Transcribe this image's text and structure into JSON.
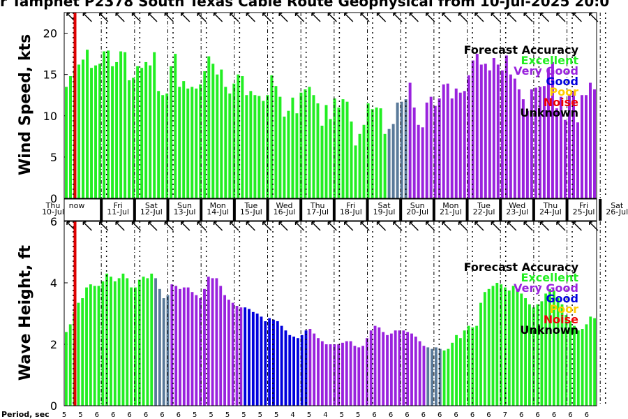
{
  "chart_data": {
    "type": "bar",
    "title": "r Tamphet P2378 South Texas Cable Route Geophysical from 10-Jul-2025 20:0",
    "days": [
      {
        "dow": "Thu",
        "date": "10-Jul"
      },
      {
        "dow": "Fri",
        "date": "11-Jul"
      },
      {
        "dow": "Sat",
        "date": "12-Jul"
      },
      {
        "dow": "Sun",
        "date": "13-Jul"
      },
      {
        "dow": "Mon",
        "date": "14-Jul"
      },
      {
        "dow": "Tue",
        "date": "15-Jul"
      },
      {
        "dow": "Wed",
        "date": "16-Jul"
      },
      {
        "dow": "Thu",
        "date": "17-Jul"
      },
      {
        "dow": "Fri",
        "date": "18-Jul"
      },
      {
        "dow": "Sat",
        "date": "19-Jul"
      },
      {
        "dow": "Sun",
        "date": "20-Jul"
      },
      {
        "dow": "Mon",
        "date": "21-Jul"
      },
      {
        "dow": "Tue",
        "date": "22-Jul"
      },
      {
        "dow": "Wed",
        "date": "23-Jul"
      },
      {
        "dow": "Thu",
        "date": "24-Jul"
      },
      {
        "dow": "Fri",
        "date": "25-Jul"
      },
      {
        "dow": "Sat",
        "date": "26-Jul"
      }
    ],
    "now_label": "now",
    "legend": {
      "title": "Forecast Accuracy",
      "entries": [
        {
          "label": "Excellent",
          "color": "#22ee22"
        },
        {
          "label": "Very Good",
          "color": "#9922dd"
        },
        {
          "label": "Good",
          "color": "#0000dd"
        },
        {
          "label": "Poor",
          "color": "#ffcc00"
        },
        {
          "label": "Noise",
          "color": "#ee0000"
        },
        {
          "label": "Unknown",
          "color": "#000000"
        }
      ]
    },
    "accuracy_colors": {
      "E": "#22ee22",
      "V": "#9922dd",
      "G": "#0000dd",
      "S": "#5a7a9a"
    },
    "wind": {
      "ylabel": "Wind Speed, kts",
      "ylim": [
        0,
        22.5
      ],
      "yticks": [
        "0",
        "5",
        "10",
        "15",
        "20"
      ],
      "values": [
        13.5,
        14.8,
        15.5,
        16.2,
        16.8,
        18.0,
        15.8,
        16.1,
        16.3,
        17.8,
        17.9,
        16.0,
        16.5,
        17.8,
        17.7,
        14.3,
        14.6,
        16.0,
        15.8,
        16.5,
        16.1,
        17.7,
        13.0,
        12.5,
        12.7,
        16.0,
        17.5,
        13.5,
        14.2,
        13.3,
        13.5,
        13.3,
        13.8,
        15.4,
        17.2,
        16.3,
        15.0,
        15.6,
        13.5,
        12.7,
        13.9,
        15.0,
        14.8,
        12.5,
        13.0,
        12.5,
        12.4,
        11.8,
        12.5,
        14.9,
        13.6,
        12.3,
        9.9,
        10.6,
        12.2,
        10.3,
        12.8,
        13.2,
        13.5,
        12.5,
        11.5,
        8.8,
        11.3,
        9.6,
        12.1,
        11.0,
        12.0,
        11.7,
        9.3,
        6.4,
        7.8,
        8.9,
        11.5,
        10.8,
        11.0,
        10.9,
        7.8,
        8.4,
        9.0,
        11.6,
        11.7,
        12.0,
        14.0,
        11.0,
        8.9,
        8.6,
        11.6,
        12.3,
        11.2,
        12.1,
        13.8,
        13.9,
        12.1,
        13.3,
        12.8,
        13.0,
        14.9,
        16.7,
        17.5,
        16.2,
        16.3,
        15.5,
        17.0,
        16.2,
        15.5,
        17.3,
        15.0,
        14.5,
        13.2,
        12.0,
        10.6,
        13.2,
        13.4,
        13.5,
        13.6,
        15.7,
        16.5,
        10.9,
        12.3,
        9.5,
        12.5,
        13.0,
        9.2,
        12.5,
        12.5,
        14.0,
        13.2
      ],
      "accuracy": "EEEEEEEEEEEEEEEEEEEEEEEEEEEEEEEEEEEEEEEEEEEEEEEEEEEEEEEEEEEEEEEEEEEEEEEEEEEEESSSSSVVVVVVVVVVVVVVVVVVVVVVVVVVVVVVVVVVVVVVVVVVVVVVVVVV"
    },
    "wave": {
      "ylabel": "Wave Height, ft",
      "ylim": [
        0,
        6
      ],
      "yticks": [
        "0",
        "2",
        "4",
        "6"
      ],
      "values": [
        2.4,
        2.65,
        3.05,
        3.35,
        3.5,
        3.85,
        3.95,
        3.9,
        3.9,
        4.05,
        4.3,
        4.2,
        4.05,
        4.15,
        4.3,
        4.15,
        3.85,
        3.85,
        4.1,
        4.2,
        4.15,
        4.3,
        4.15,
        3.8,
        3.5,
        3.6,
        3.95,
        3.9,
        3.8,
        3.85,
        3.85,
        3.7,
        3.6,
        3.5,
        3.8,
        4.2,
        4.15,
        4.15,
        3.9,
        3.6,
        3.45,
        3.35,
        3.25,
        3.2,
        3.2,
        3.15,
        3.05,
        3.0,
        2.9,
        2.75,
        2.85,
        2.8,
        2.75,
        2.6,
        2.45,
        2.3,
        2.25,
        2.2,
        2.3,
        2.45,
        2.5,
        2.35,
        2.2,
        2.1,
        2.0,
        2.0,
        2.0,
        2.0,
        2.05,
        2.1,
        2.1,
        1.95,
        1.9,
        1.95,
        2.2,
        2.45,
        2.6,
        2.55,
        2.4,
        2.3,
        2.35,
        2.45,
        2.45,
        2.45,
        2.4,
        2.35,
        2.25,
        2.1,
        1.95,
        1.9,
        1.85,
        1.9,
        1.85,
        1.8,
        1.85,
        2.05,
        2.3,
        2.2,
        2.45,
        2.6,
        2.55,
        2.6,
        3.35,
        3.7,
        3.8,
        3.9,
        4.0,
        3.95,
        3.85,
        3.75,
        3.9,
        3.8,
        3.65,
        3.5,
        3.3,
        3.2,
        3.3,
        3.4,
        3.65,
        3.8,
        3.75,
        3.5,
        3.3,
        2.95,
        2.75,
        2.6,
        2.45,
        2.5,
        2.65,
        2.9,
        2.85
      ],
      "accuracy": "EEEEEEEEEEEEEEEEEEEEEESSSSVVVVVVVVVVVVVVVVVVGGGGGGGGGGGGGGGGVVVVVVVVVVVVVVVVVVVVVVVVVVVVVSSSSEEEEEEEEEEEEEEEEEEEEEEEEEEEEEEEEEEEEEEEEEEEEEEEEEEEEEEEEEE"
    },
    "period": {
      "label": "Period, sec",
      "values": [
        "5",
        "5",
        "6",
        "6",
        "6",
        "6",
        "6",
        "6",
        "5",
        "5",
        "5",
        "5",
        "5",
        "5",
        "4",
        "5",
        "4",
        "5",
        "5",
        "6",
        "6",
        "6",
        "6",
        "6",
        "6",
        "6",
        "6",
        "7",
        "6",
        "6",
        "6",
        "6",
        "6"
      ]
    }
  }
}
